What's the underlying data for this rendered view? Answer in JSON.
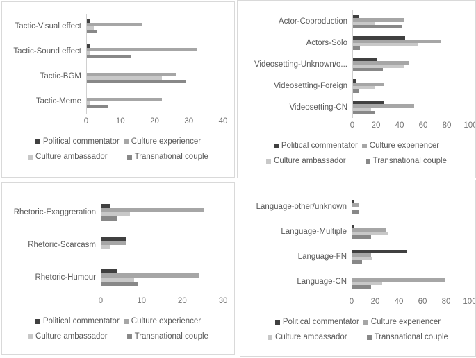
{
  "figure": {
    "title": "",
    "panel_border_color": "#d9d9d9",
    "axis_line_color": "#d0d0d0",
    "label_text_color": "#595959",
    "tick_text_color": "#737373",
    "background": "#ffffff"
  },
  "series_colors": {
    "Political commentator": "#404040",
    "Culture experiencer": "#a6a6a6",
    "Culture ambassador": "#c8c8c8",
    "Transnational couple": "#888888"
  },
  "legend_rows": [
    [
      "Political commentator",
      "Culture experiencer"
    ],
    [
      "Culture ambassador",
      "Transnational couple"
    ]
  ],
  "chart_data": [
    {
      "type": "bar",
      "orientation": "horizontal",
      "title": "",
      "xlabel": "",
      "ylabel": "",
      "grid": false,
      "legend_position": "bottom",
      "xlim": [
        0,
        40
      ],
      "xticks": [
        0,
        10,
        20,
        30,
        40
      ],
      "categories": [
        "Tactic-Visual effect",
        "Tactic-Sound effect",
        "Tactic-BGM",
        "Tactic-Meme"
      ],
      "series": [
        {
          "name": "Political commentator",
          "color": "#404040",
          "values": [
            1,
            1,
            0,
            0
          ]
        },
        {
          "name": "Culture experiencer",
          "color": "#a6a6a6",
          "values": [
            16,
            32,
            26,
            22
          ]
        },
        {
          "name": "Culture ambassador",
          "color": "#c8c8c8",
          "values": [
            2,
            1,
            22,
            1
          ]
        },
        {
          "name": "Transnational couple",
          "color": "#888888",
          "values": [
            3,
            13,
            29,
            6
          ]
        }
      ]
    },
    {
      "type": "bar",
      "orientation": "horizontal",
      "title": "",
      "xlabel": "",
      "ylabel": "",
      "grid": false,
      "legend_position": "bottom",
      "xlim": [
        0,
        100
      ],
      "xticks": [
        0,
        20,
        40,
        60,
        80,
        100
      ],
      "categories": [
        "Actor-Coproduction",
        "Actors-Solo",
        "Videosetting-Unknown/o...",
        "Videosetting-Foreign",
        "Videosetting-CN"
      ],
      "series": [
        {
          "name": "Political commentator",
          "color": "#404040",
          "values": [
            5,
            44,
            20,
            3,
            26
          ]
        },
        {
          "name": "Culture experiencer",
          "color": "#a6a6a6",
          "values": [
            43,
            74,
            47,
            26,
            52
          ]
        },
        {
          "name": "Culture ambassador",
          "color": "#c8c8c8",
          "values": [
            18,
            55,
            43,
            18,
            15
          ]
        },
        {
          "name": "Transnational couple",
          "color": "#888888",
          "values": [
            41,
            6,
            25,
            5,
            18
          ]
        }
      ]
    },
    {
      "type": "bar",
      "orientation": "horizontal",
      "title": "",
      "xlabel": "",
      "ylabel": "",
      "grid": false,
      "legend_position": "bottom",
      "xlim": [
        0,
        30
      ],
      "xticks": [
        0,
        10,
        20,
        30
      ],
      "categories": [
        "Rhetoric-Exaggreration",
        "Rhetoric-Scarcasm",
        "Rhetoric-Humour"
      ],
      "series": [
        {
          "name": "Political commentator",
          "color": "#404040",
          "values": [
            2,
            6,
            4
          ]
        },
        {
          "name": "Culture experiencer",
          "color": "#a6a6a6",
          "values": [
            25,
            6,
            24
          ]
        },
        {
          "name": "Culture ambassador",
          "color": "#c8c8c8",
          "values": [
            7,
            2,
            8
          ]
        },
        {
          "name": "Transnational couple",
          "color": "#888888",
          "values": [
            4,
            0,
            9
          ]
        }
      ]
    },
    {
      "type": "bar",
      "orientation": "horizontal",
      "title": "",
      "xlabel": "",
      "ylabel": "",
      "grid": false,
      "legend_position": "bottom",
      "xlim": [
        0,
        100
      ],
      "xticks": [
        0,
        20,
        40,
        60,
        80,
        100
      ],
      "categories": [
        "Language-other/unknown",
        "Language-Multiple",
        "Language-FN",
        "Language-CN"
      ],
      "series": [
        {
          "name": "Political commentator",
          "color": "#404040",
          "values": [
            1,
            2,
            46,
            0
          ]
        },
        {
          "name": "Culture experiencer",
          "color": "#a6a6a6",
          "values": [
            5,
            28,
            16,
            78
          ]
        },
        {
          "name": "Culture ambassador",
          "color": "#c8c8c8",
          "values": [
            0,
            30,
            17,
            25
          ]
        },
        {
          "name": "Transnational couple",
          "color": "#888888",
          "values": [
            6,
            16,
            8,
            16
          ]
        }
      ]
    }
  ]
}
